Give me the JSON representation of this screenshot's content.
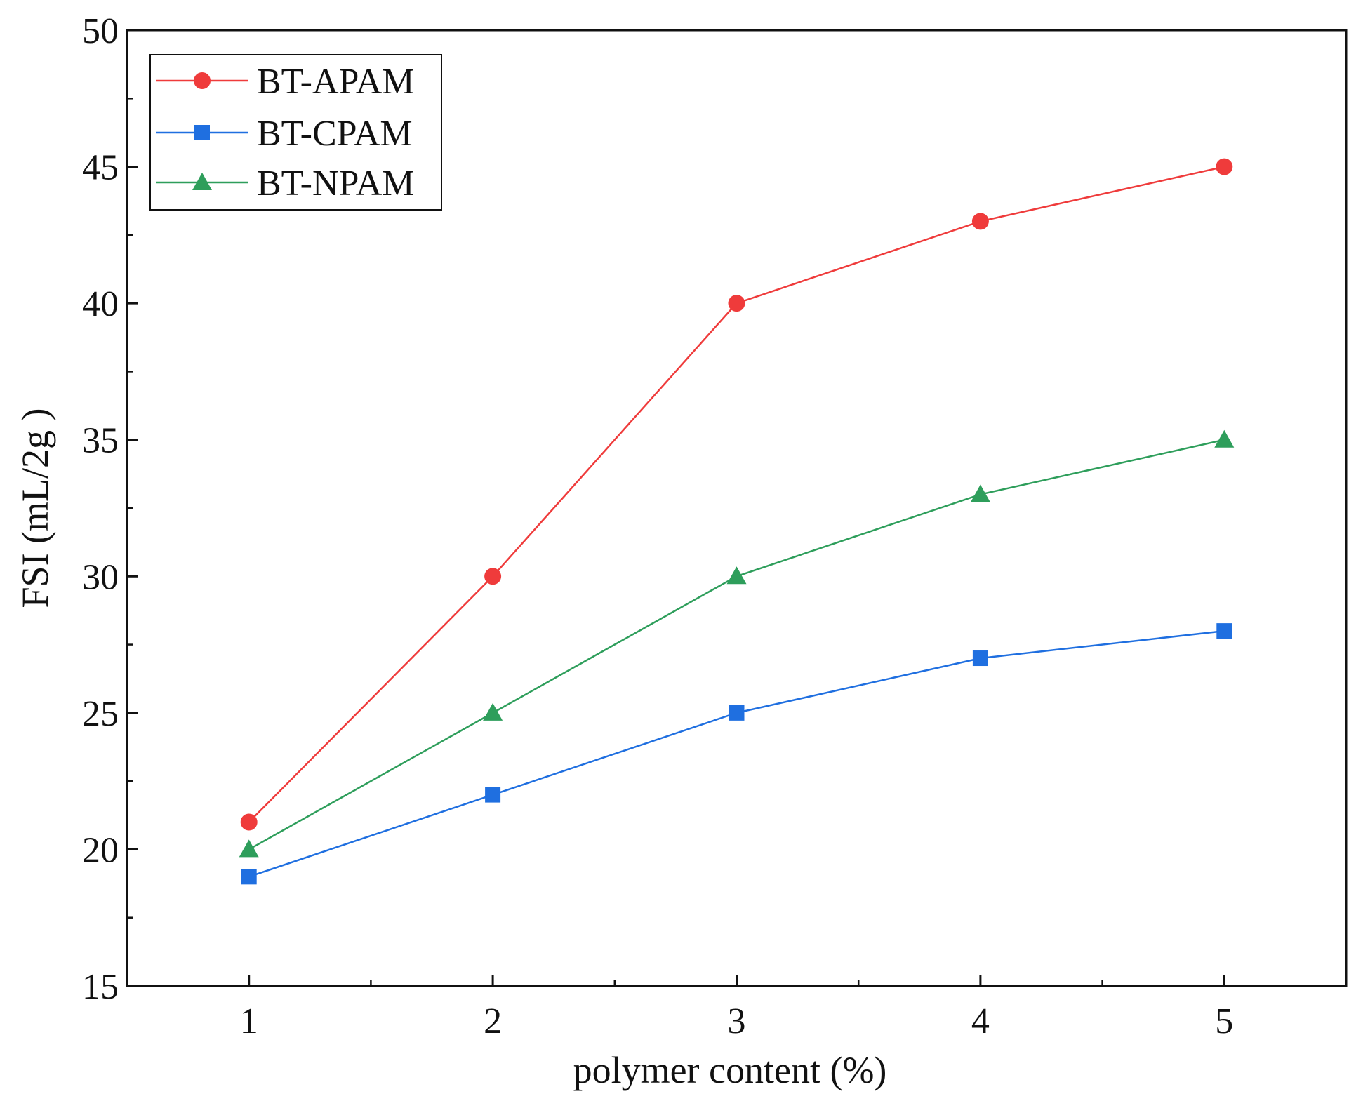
{
  "chart_data": {
    "type": "line",
    "title": "",
    "xlabel": "polymer content (%)",
    "ylabel": "FSI (mL/2g )",
    "xlim": [
      0.5,
      5.5
    ],
    "ylim": [
      15,
      50
    ],
    "x": [
      1,
      2,
      3,
      4,
      5
    ],
    "xticks": [
      1,
      2,
      3,
      4,
      5
    ],
    "xtick_labels": [
      "1",
      "2",
      "3",
      "4",
      "5"
    ],
    "x_minor_ticks": [
      1.5,
      2.5,
      3.5,
      4.5
    ],
    "yticks": [
      15,
      20,
      25,
      30,
      35,
      40,
      45,
      50
    ],
    "ytick_labels": [
      "15",
      "20",
      "25",
      "30",
      "35",
      "40",
      "45",
      "50"
    ],
    "y_minor_ticks": [
      17.5,
      22.5,
      27.5,
      32.5,
      37.5,
      42.5,
      47.5
    ],
    "grid": false,
    "legend_position": "top-left",
    "series": [
      {
        "name": "BT-APAM",
        "color": "#ef3b3b",
        "marker": "circle",
        "values": [
          21,
          30,
          40,
          43,
          45
        ]
      },
      {
        "name": "BT-CPAM",
        "color": "#1f6fe0",
        "marker": "square",
        "values": [
          19,
          22,
          25,
          27,
          28
        ]
      },
      {
        "name": "BT-NPAM",
        "color": "#2e9e5b",
        "marker": "triangle",
        "values": [
          20,
          25,
          30,
          33,
          35
        ]
      }
    ]
  }
}
